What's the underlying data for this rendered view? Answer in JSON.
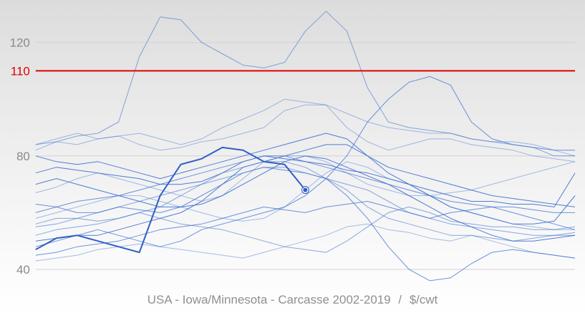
{
  "chart_data": {
    "type": "line",
    "title": "USA - Iowa/Minnesota - Carcasse 2002-2019",
    "unit": "$/cwt",
    "separator": "/",
    "x": [
      0,
      2,
      4,
      6,
      8,
      10,
      12,
      14,
      16,
      18,
      20,
      22,
      24,
      26,
      28,
      30,
      32,
      34,
      36,
      38,
      40,
      42,
      44,
      46,
      48,
      50,
      52
    ],
    "xlim": [
      0,
      52
    ],
    "ylim": [
      35,
      135
    ],
    "yticks": [
      40,
      80,
      120
    ],
    "grid": true,
    "reference_line": {
      "value": 110,
      "label": "110",
      "color": "#e00000"
    },
    "line_color": "#3c6fd1",
    "series": [
      {
        "values": [
          43,
          44,
          45,
          47,
          48,
          49,
          48,
          47,
          46,
          45,
          44,
          46,
          48,
          50,
          52,
          55,
          56,
          54,
          53,
          51,
          50,
          52,
          50,
          48,
          46,
          45,
          44
        ]
      },
      {
        "values": [
          52,
          54,
          55,
          56,
          58,
          60,
          58,
          56,
          55,
          54,
          52,
          50,
          48,
          47,
          46,
          50,
          55,
          60,
          62,
          60,
          57,
          56,
          55,
          55,
          54,
          54,
          55
        ]
      },
      {
        "values": [
          63,
          62,
          60,
          60,
          62,
          61,
          60,
          62,
          66,
          70,
          74,
          76,
          75,
          74,
          72,
          66,
          58,
          48,
          40,
          36,
          37,
          42,
          46,
          47,
          46,
          45,
          44
        ]
      },
      {
        "values": [
          70,
          72,
          70,
          68,
          66,
          64,
          62,
          62,
          63,
          66,
          70,
          74,
          78,
          80,
          79,
          76,
          73,
          70,
          66,
          62,
          58,
          55,
          52,
          50,
          50,
          51,
          52
        ]
      },
      {
        "values": [
          58,
          60,
          62,
          64,
          66,
          66,
          64,
          62,
          60,
          58,
          57,
          58,
          62,
          68,
          74,
          78,
          76,
          72,
          70,
          66,
          62,
          60,
          58,
          56,
          55,
          54,
          54
        ]
      },
      {
        "values": [
          55,
          56,
          58,
          60,
          62,
          64,
          66,
          68,
          70,
          72,
          74,
          76,
          76,
          74,
          72,
          70,
          68,
          64,
          60,
          58,
          56,
          55,
          54,
          53,
          52,
          52,
          53
        ]
      },
      {
        "values": [
          60,
          62,
          64,
          65,
          66,
          68,
          70,
          72,
          74,
          76,
          78,
          80,
          80,
          78,
          76,
          74,
          72,
          70,
          68,
          66,
          64,
          63,
          62,
          62,
          61,
          60,
          60
        ]
      },
      {
        "values": [
          80,
          78,
          77,
          78,
          76,
          74,
          72,
          74,
          76,
          78,
          80,
          82,
          84,
          86,
          88,
          86,
          80,
          76,
          74,
          72,
          70,
          68,
          66,
          65,
          64,
          63,
          62
        ]
      },
      {
        "values": [
          84,
          86,
          88,
          86,
          87,
          84,
          82,
          83,
          85,
          86,
          88,
          90,
          96,
          98,
          98,
          95,
          92,
          90,
          89,
          88,
          88,
          86,
          85,
          85,
          84,
          82,
          80
        ]
      },
      {
        "values": [
          84,
          85,
          87,
          88,
          92,
          115,
          129,
          128,
          120,
          116,
          112,
          111,
          113,
          124,
          131,
          124,
          104,
          92,
          90,
          89,
          88,
          86,
          85,
          84,
          83,
          80,
          80
        ]
      },
      {
        "values": [
          48,
          50,
          52,
          54,
          52,
          50,
          48,
          50,
          54,
          56,
          58,
          60,
          62,
          66,
          72,
          80,
          92,
          100,
          106,
          108,
          105,
          92,
          86,
          84,
          83,
          82,
          82
        ]
      },
      {
        "values": [
          50,
          51,
          52,
          52,
          54,
          56,
          58,
          60,
          64,
          70,
          76,
          78,
          80,
          82,
          84,
          84,
          80,
          74,
          70,
          66,
          62,
          60,
          58,
          56,
          56,
          57,
          66
        ]
      },
      {
        "values": [
          67,
          69,
          72,
          74,
          72,
          70,
          68,
          66,
          64,
          66,
          72,
          78,
          80,
          80,
          78,
          74,
          70,
          68,
          66,
          66,
          67,
          68,
          70,
          72,
          74,
          76,
          78
        ]
      },
      {
        "values": [
          56,
          58,
          58,
          57,
          58,
          60,
          62,
          66,
          70,
          74,
          76,
          78,
          78,
          76,
          72,
          68,
          62,
          58,
          56,
          54,
          52,
          52,
          51,
          50,
          51,
          52,
          52
        ]
      },
      {
        "values": [
          45,
          46,
          48,
          49,
          50,
          52,
          54,
          55,
          56,
          58,
          60,
          62,
          61,
          60,
          62,
          63,
          64,
          62,
          60,
          58,
          60,
          61,
          62,
          60,
          58,
          56,
          54
        ]
      },
      {
        "values": [
          74,
          76,
          75,
          74,
          73,
          72,
          70,
          70,
          71,
          74,
          78,
          80,
          79,
          78,
          77,
          75,
          74,
          72,
          70,
          68,
          66,
          64,
          64,
          63,
          63,
          62,
          74
        ]
      },
      {
        "values": [
          82,
          85,
          84,
          86,
          87,
          88,
          86,
          84,
          86,
          90,
          93,
          96,
          100,
          99,
          98,
          90,
          85,
          82,
          84,
          86,
          86,
          84,
          83,
          82,
          80,
          79,
          78
        ]
      }
    ],
    "current_series": {
      "values": [
        47,
        51,
        52,
        50,
        48,
        46,
        66,
        77,
        79,
        83,
        82,
        78,
        77,
        68
      ],
      "color": "#2f5fc4"
    }
  }
}
